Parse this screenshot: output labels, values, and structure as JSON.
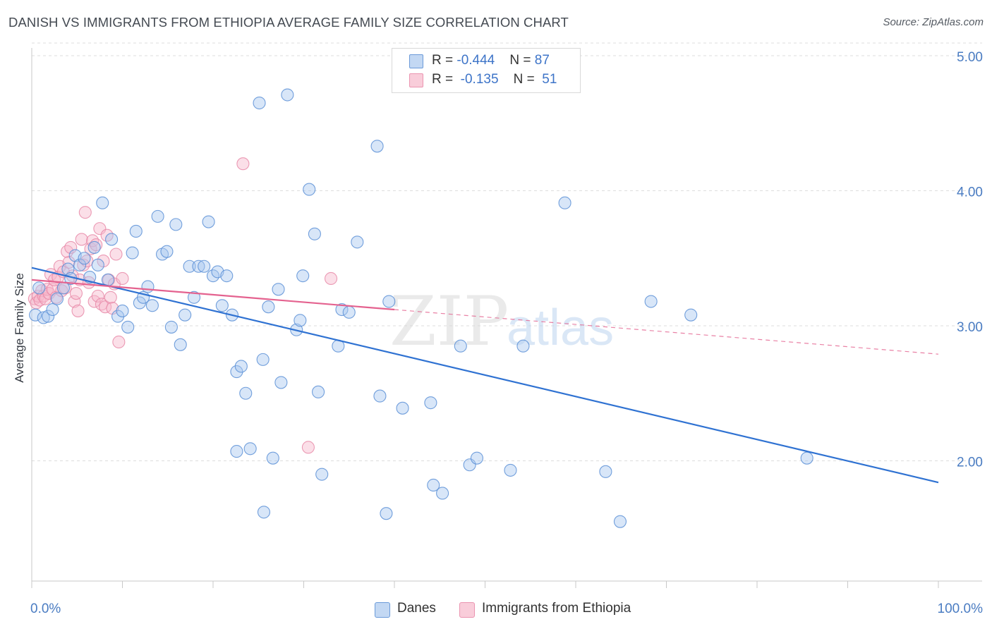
{
  "title": "DANISH VS IMMIGRANTS FROM ETHIOPIA AVERAGE FAMILY SIZE CORRELATION CHART",
  "source": "Source: ZipAtlas.com",
  "watermark": {
    "zip": "ZIP",
    "atlas": "atlas"
  },
  "legend": {
    "rows": [
      {
        "r_label": "R = ",
        "r_value": "-0.444",
        "n_label": "N = ",
        "n_value": "87"
      },
      {
        "r_label": "R = ",
        "r_value": " -0.135",
        "n_label": "N = ",
        "n_value": " 51"
      }
    ]
  },
  "colors": {
    "danes_fill": "#a9c8ef",
    "danes_stroke": "#5b8fd6",
    "danes_line": "#2f72d2",
    "eth_fill": "#f6b8cb",
    "eth_stroke": "#e88aa8",
    "eth_line": "#e4628f",
    "tick_label": "#4a7cc2",
    "grid": "#dddddd"
  },
  "chart_data": {
    "type": "scatter",
    "title": "DANISH VS IMMIGRANTS FROM ETHIOPIA AVERAGE FAMILY SIZE CORRELATION CHART",
    "xlabel": "",
    "ylabel": "Average Family Size",
    "xlim": [
      0,
      100
    ],
    "ylim": [
      1.0,
      5.1
    ],
    "x_tick_labels": [
      "0.0%",
      "100.0%"
    ],
    "y_ticks": [
      2.0,
      3.0,
      4.0,
      5.0
    ],
    "y_tick_labels": [
      "2.00",
      "3.00",
      "4.00",
      "5.00"
    ],
    "grid": "horizontal dashed",
    "legend_position": "top-center",
    "series": [
      {
        "name": "Danes",
        "R": -0.444,
        "N": 87,
        "trend": {
          "x": [
            0,
            100
          ],
          "y": [
            3.43,
            1.84
          ],
          "solid_until": 100
        },
        "points": [
          [
            0.4,
            3.08
          ],
          [
            0.8,
            3.28
          ],
          [
            1.3,
            3.06
          ],
          [
            1.8,
            3.07
          ],
          [
            2.3,
            3.12
          ],
          [
            2.8,
            3.2
          ],
          [
            3.5,
            3.28
          ],
          [
            4.0,
            3.42
          ],
          [
            4.3,
            3.35
          ],
          [
            4.8,
            3.52
          ],
          [
            5.3,
            3.45
          ],
          [
            5.8,
            3.5
          ],
          [
            6.4,
            3.36
          ],
          [
            6.9,
            3.58
          ],
          [
            7.3,
            3.45
          ],
          [
            7.8,
            3.91
          ],
          [
            8.4,
            3.34
          ],
          [
            8.8,
            3.64
          ],
          [
            9.5,
            3.07
          ],
          [
            10.0,
            3.11
          ],
          [
            10.6,
            2.99
          ],
          [
            11.1,
            3.54
          ],
          [
            11.5,
            3.7
          ],
          [
            11.9,
            3.17
          ],
          [
            12.3,
            3.21
          ],
          [
            12.8,
            3.29
          ],
          [
            13.3,
            3.15
          ],
          [
            13.9,
            3.81
          ],
          [
            14.4,
            3.53
          ],
          [
            14.9,
            3.55
          ],
          [
            15.4,
            2.99
          ],
          [
            15.9,
            3.75
          ],
          [
            16.4,
            2.86
          ],
          [
            16.9,
            3.08
          ],
          [
            17.4,
            3.44
          ],
          [
            17.9,
            3.21
          ],
          [
            18.4,
            3.44
          ],
          [
            19.0,
            3.44
          ],
          [
            19.5,
            3.77
          ],
          [
            20.0,
            3.37
          ],
          [
            20.5,
            3.4
          ],
          [
            21.0,
            3.15
          ],
          [
            21.5,
            3.37
          ],
          [
            22.1,
            3.08
          ],
          [
            22.6,
            2.07
          ],
          [
            22.6,
            2.66
          ],
          [
            23.1,
            2.7
          ],
          [
            23.6,
            2.5
          ],
          [
            24.1,
            2.09
          ],
          [
            25.1,
            4.65
          ],
          [
            25.5,
            2.75
          ],
          [
            25.6,
            1.62
          ],
          [
            26.1,
            3.14
          ],
          [
            26.6,
            2.02
          ],
          [
            27.2,
            3.27
          ],
          [
            27.5,
            2.58
          ],
          [
            28.2,
            4.71
          ],
          [
            29.2,
            2.97
          ],
          [
            29.6,
            3.04
          ],
          [
            29.9,
            3.37
          ],
          [
            30.6,
            4.01
          ],
          [
            31.2,
            3.68
          ],
          [
            31.6,
            2.51
          ],
          [
            32.0,
            1.9
          ],
          [
            33.8,
            2.85
          ],
          [
            34.2,
            3.12
          ],
          [
            35.0,
            3.1
          ],
          [
            35.9,
            3.62
          ],
          [
            38.1,
            4.33
          ],
          [
            38.4,
            2.48
          ],
          [
            39.1,
            1.61
          ],
          [
            39.4,
            3.18
          ],
          [
            40.9,
            2.39
          ],
          [
            44.0,
            2.43
          ],
          [
            44.3,
            1.82
          ],
          [
            45.3,
            1.76
          ],
          [
            47.3,
            2.85
          ],
          [
            48.3,
            1.97
          ],
          [
            49.1,
            2.02
          ],
          [
            52.8,
            1.93
          ],
          [
            54.2,
            2.85
          ],
          [
            58.8,
            3.91
          ],
          [
            63.3,
            1.92
          ],
          [
            64.9,
            1.55
          ],
          [
            68.3,
            3.18
          ],
          [
            72.7,
            3.08
          ],
          [
            85.5,
            2.02
          ]
        ]
      },
      {
        "name": "Immigrants from Ethiopia",
        "R": -0.135,
        "N": 51,
        "trend": {
          "x": [
            0,
            100
          ],
          "y": [
            3.34,
            2.79
          ],
          "solid_until": 40
        },
        "points": [
          [
            0.3,
            3.2
          ],
          [
            0.5,
            3.17
          ],
          [
            0.7,
            3.22
          ],
          [
            0.9,
            3.19
          ],
          [
            1.1,
            3.26
          ],
          [
            1.3,
            3.22
          ],
          [
            1.5,
            3.2
          ],
          [
            1.7,
            3.27
          ],
          [
            1.9,
            3.24
          ],
          [
            2.1,
            3.38
          ],
          [
            2.3,
            3.27
          ],
          [
            2.5,
            3.34
          ],
          [
            2.7,
            3.21
          ],
          [
            2.9,
            3.36
          ],
          [
            3.1,
            3.44
          ],
          [
            3.3,
            3.26
          ],
          [
            3.5,
            3.4
          ],
          [
            3.7,
            3.28
          ],
          [
            3.9,
            3.55
          ],
          [
            4.1,
            3.47
          ],
          [
            4.3,
            3.58
          ],
          [
            4.5,
            3.37
          ],
          [
            4.7,
            3.18
          ],
          [
            4.9,
            3.24
          ],
          [
            5.1,
            3.11
          ],
          [
            5.3,
            3.34
          ],
          [
            5.5,
            3.64
          ],
          [
            5.7,
            3.45
          ],
          [
            5.9,
            3.84
          ],
          [
            6.1,
            3.48
          ],
          [
            6.3,
            3.32
          ],
          [
            6.5,
            3.57
          ],
          [
            6.7,
            3.63
          ],
          [
            6.9,
            3.18
          ],
          [
            7.1,
            3.6
          ],
          [
            7.3,
            3.22
          ],
          [
            7.5,
            3.72
          ],
          [
            7.7,
            3.16
          ],
          [
            7.9,
            3.48
          ],
          [
            8.1,
            3.14
          ],
          [
            8.3,
            3.67
          ],
          [
            8.5,
            3.34
          ],
          [
            8.7,
            3.21
          ],
          [
            8.9,
            3.13
          ],
          [
            9.1,
            3.31
          ],
          [
            9.3,
            3.53
          ],
          [
            9.6,
            2.88
          ],
          [
            10.0,
            3.35
          ],
          [
            23.3,
            4.2
          ],
          [
            30.5,
            2.1
          ],
          [
            33.0,
            3.35
          ]
        ]
      }
    ]
  },
  "bottom_legend": [
    "Danes",
    "Immigrants from Ethiopia"
  ]
}
